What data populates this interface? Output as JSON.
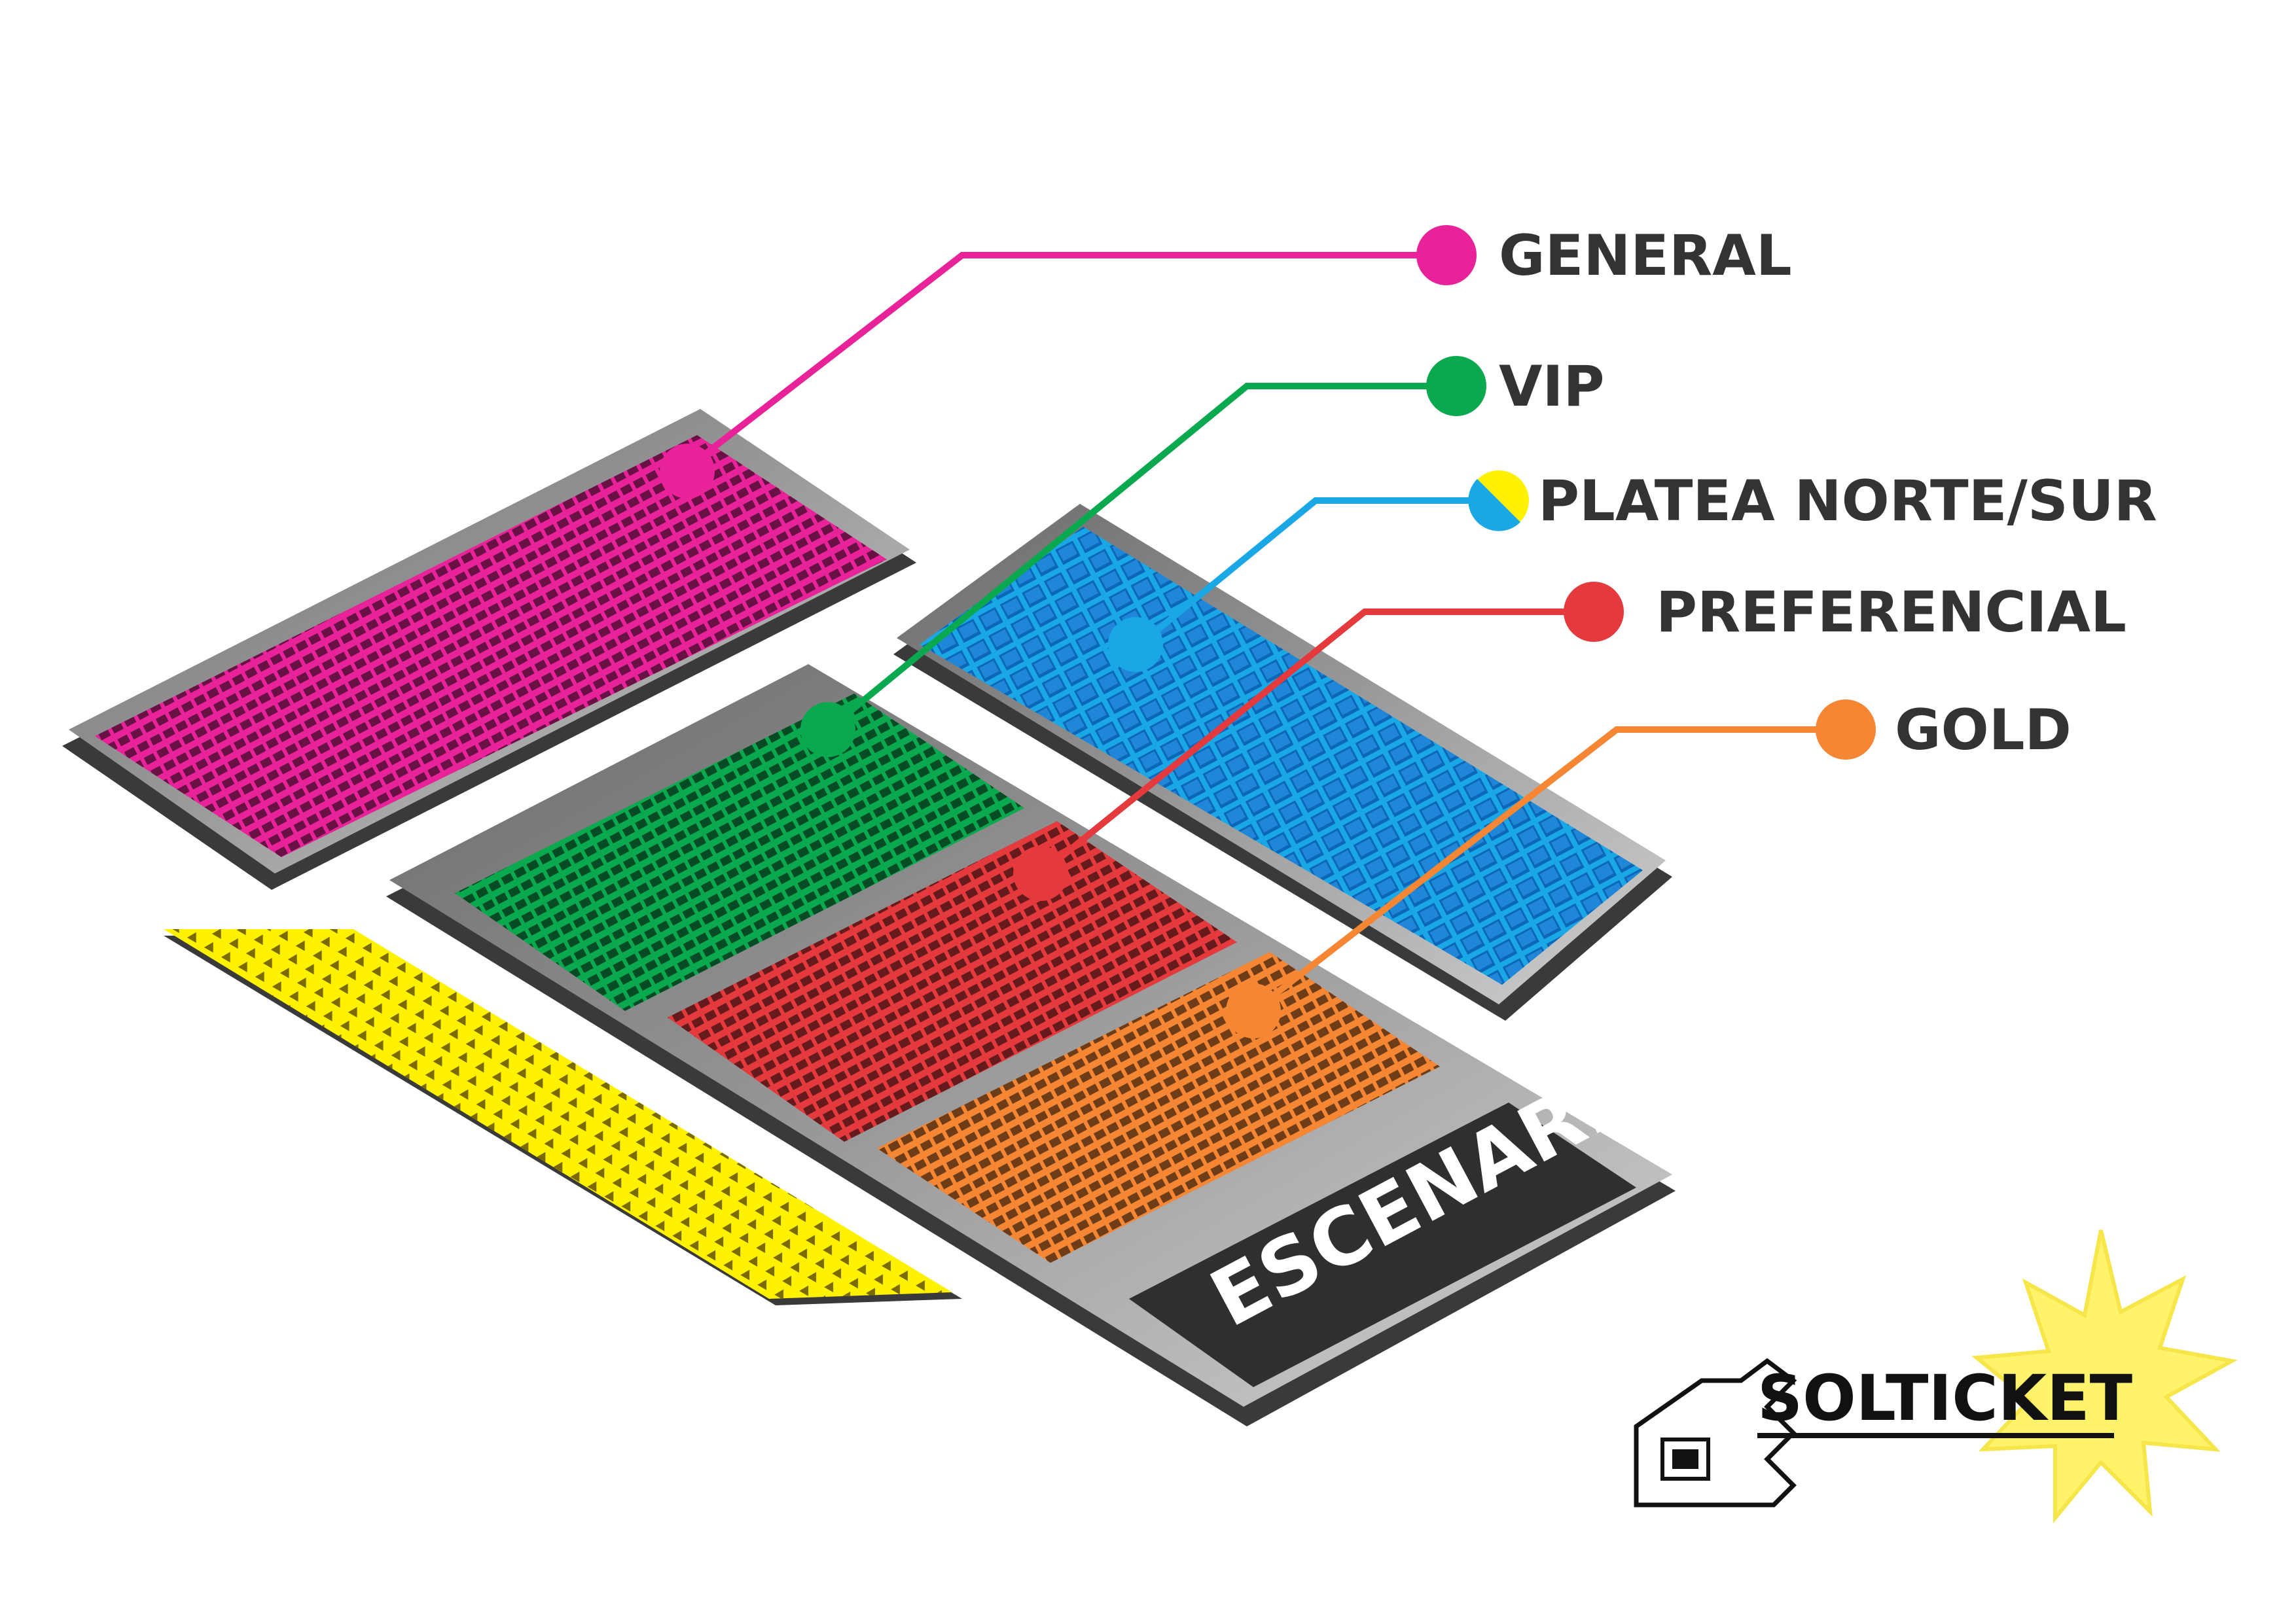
{
  "legend": [
    {
      "key": "general",
      "label": "GENERAL",
      "color": "#e8239a"
    },
    {
      "key": "vip",
      "label": "VIP",
      "color": "#0aa84f"
    },
    {
      "key": "platea",
      "label": "PLATEA NORTE/SUR",
      "color": "#1aa7e6",
      "color2": "#fff200"
    },
    {
      "key": "preferencial",
      "label": "PREFERENCIAL",
      "color": "#e43a3d"
    },
    {
      "key": "gold",
      "label": "GOLD",
      "color": "#f58634"
    }
  ],
  "stage": {
    "label": "ESCENARIO"
  },
  "brand": {
    "name": "SOLTICKET"
  },
  "colors": {
    "base": "#5a5a5a",
    "base_light": "#b9b9b9",
    "yellow_zone": "#fff200",
    "stage_panel": "#2f2f2f",
    "burst": "#fff36b"
  }
}
